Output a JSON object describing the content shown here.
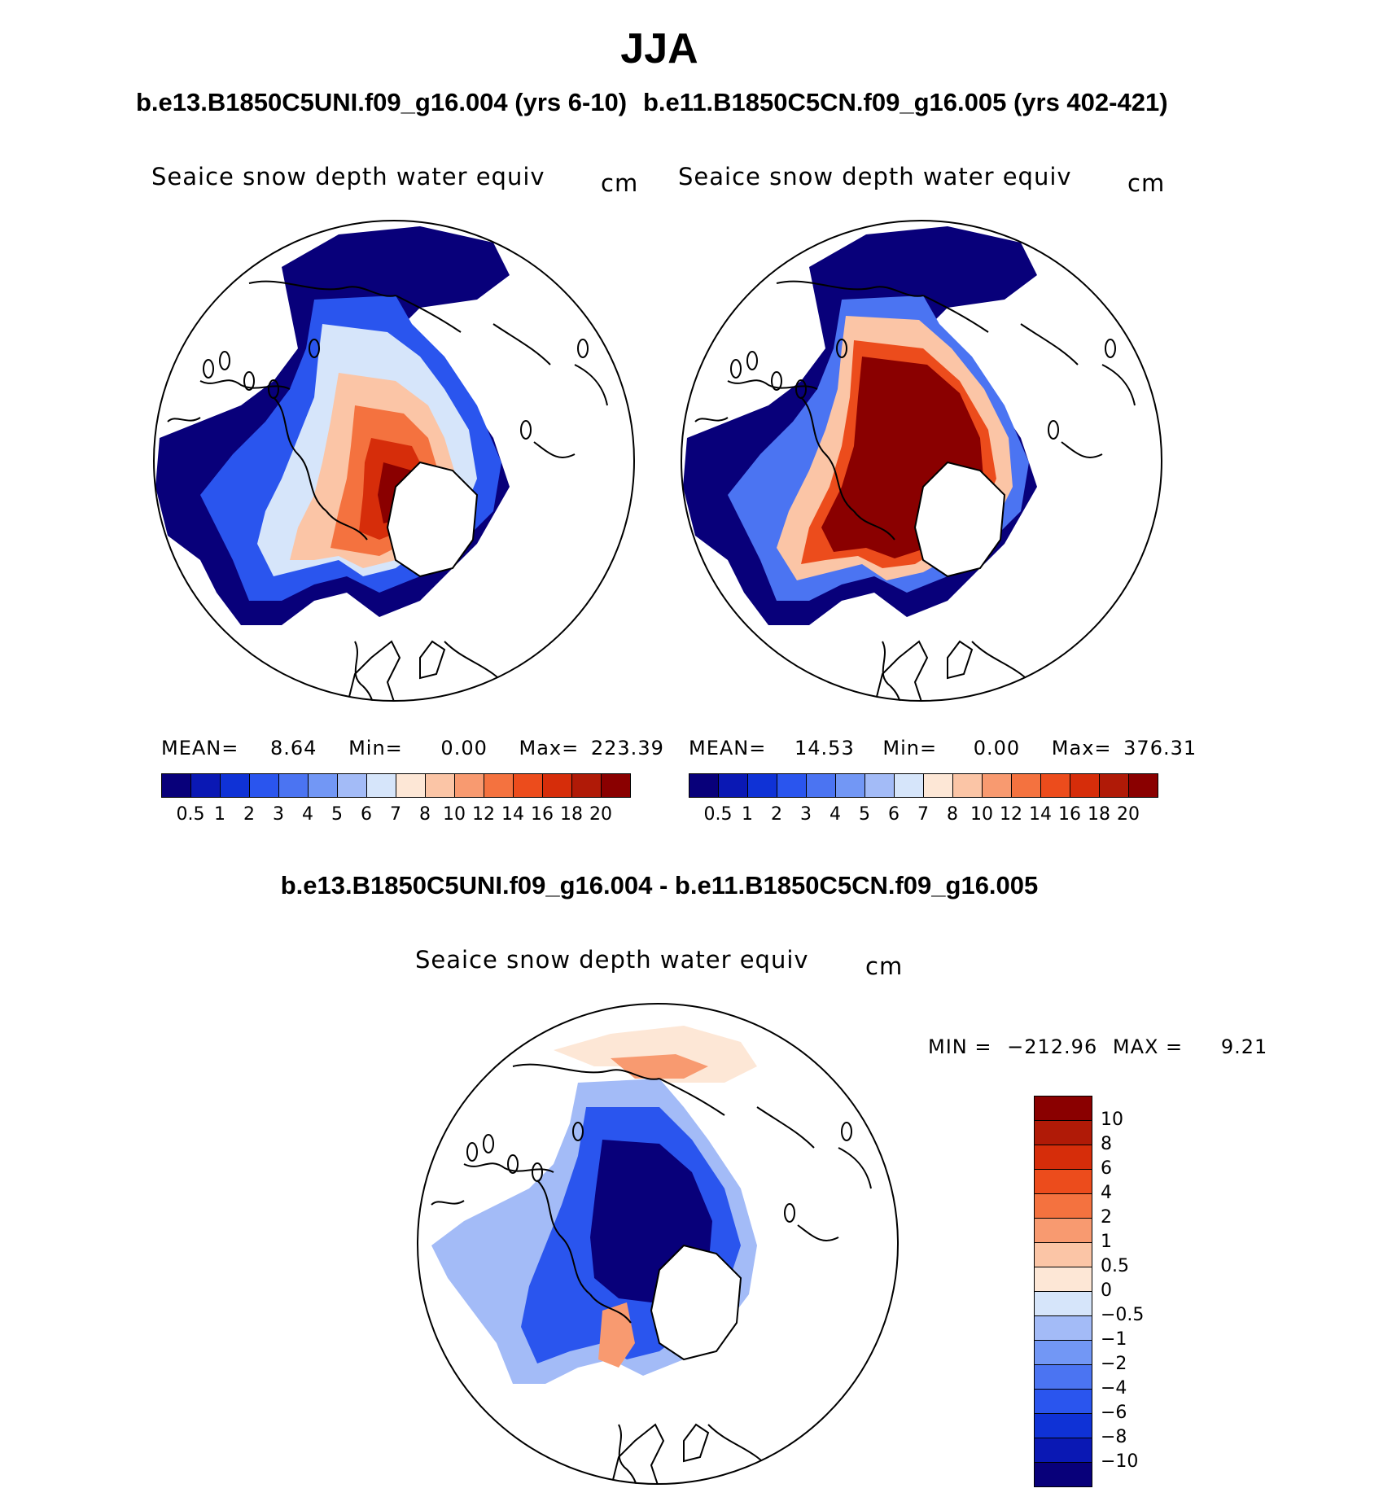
{
  "figure": {
    "season": "JJA",
    "case1_title": "b.e13.B1850C5UNI.f09_g16.004 (yrs 6-10)",
    "case2_title": "b.e11.B1850C5CN.f09_g16.005 (yrs 402-421)",
    "diff_title": "b.e13.B1850C5UNI.f09_g16.004 - b.e11.B1850C5CN.f09_g16.005"
  },
  "chart_data": [
    {
      "type": "heatmap",
      "projection": "north polar stereographic",
      "title": "Seaice snow depth water equiv",
      "units": "cm",
      "stats": {
        "mean_label": "MEAN=",
        "mean": "8.64",
        "min_label": "Min=",
        "min": "0.00",
        "max_label": "Max=",
        "max": "223.39"
      },
      "colorbar_levels": [
        "0.5",
        "1",
        "2",
        "3",
        "4",
        "5",
        "6",
        "7",
        "8",
        "10",
        "12",
        "14",
        "16",
        "18",
        "20"
      ],
      "colors": [
        "#08007a",
        "#0a18b4",
        "#0f32d6",
        "#2a55ee",
        "#4b74f2",
        "#7297f5",
        "#a3bbf7",
        "#d6e5fa",
        "#fde7d6",
        "#fbc5a6",
        "#f89a70",
        "#f4723f",
        "#ec4c1c",
        "#d62d0a",
        "#b01a07",
        "#8a0000"
      ],
      "field_summary": "Highest values (>20 cm) north of Canadian Archipelago and Greenland; low values (<0.5 cm) along outer ice edge and subpolar seas"
    },
    {
      "type": "heatmap",
      "projection": "north polar stereographic",
      "title": "Seaice snow depth water equiv",
      "units": "cm",
      "stats": {
        "mean_label": "MEAN=",
        "mean": "14.53",
        "min_label": "Min=",
        "min": "0.00",
        "max_label": "Max=",
        "max": "376.31"
      },
      "colorbar_levels": [
        "0.5",
        "1",
        "2",
        "3",
        "4",
        "5",
        "6",
        "7",
        "8",
        "10",
        "12",
        "14",
        "16",
        "18",
        "20"
      ],
      "colors": [
        "#08007a",
        "#0a18b4",
        "#0f32d6",
        "#2a55ee",
        "#4b74f2",
        "#7297f5",
        "#a3bbf7",
        "#d6e5fa",
        "#fde7d6",
        "#fbc5a6",
        "#f89a70",
        "#f4723f",
        "#ec4c1c",
        "#d62d0a",
        "#b01a07",
        "#8a0000"
      ],
      "field_summary": "Broad region >20 cm covering central Arctic; low values along outer ice edge"
    },
    {
      "type": "heatmap",
      "projection": "north polar stereographic",
      "title": "Seaice snow depth water equiv",
      "units": "cm",
      "stats": {
        "min_label": "MIN =",
        "min": "−212.96",
        "max_label": "MAX =",
        "max": "9.21"
      },
      "colorbar_levels": [
        "−10",
        "−8",
        "−6",
        "−4",
        "−2",
        "−1",
        "−0.5",
        "0",
        "0.5",
        "1",
        "2",
        "4",
        "6",
        "8",
        "10"
      ],
      "colors": [
        "#08007a",
        "#0a18b4",
        "#0f32d6",
        "#2a55ee",
        "#4b74f2",
        "#7297f5",
        "#a3bbf7",
        "#d6e5fa",
        "#fde7d6",
        "#fbc5a6",
        "#f89a70",
        "#f4723f",
        "#ec4c1c",
        "#d62d0a",
        "#b01a07",
        "#8a0000"
      ],
      "field_summary": "Strongly negative (< -10 cm) over central Arctic; small positive differences near Bering Strait and Siberian shelf"
    }
  ]
}
